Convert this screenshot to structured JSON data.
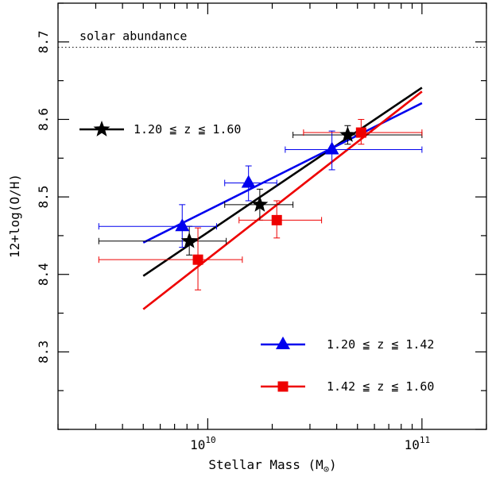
{
  "chart_data": {
    "type": "scatter",
    "xlabel": "Stellar Mass (M",
    "xlabel_symbol": "⊙",
    "xlabel_close": ")",
    "ylabel": "12+log(O/H)",
    "xscale": "log",
    "xlim": [
      2000000000.0,
      200000000000.0
    ],
    "ylim": [
      8.2,
      8.75
    ],
    "x_ticks": [
      {
        "value": 10000000000.0,
        "base": "10",
        "exp": "10"
      },
      {
        "value": 100000000000.0,
        "base": "10",
        "exp": "11"
      }
    ],
    "y_ticks": [
      "8.3",
      "8.4",
      "8.5",
      "8.6",
      "8.7"
    ],
    "reference_line": {
      "y": 8.693,
      "label": "solar abundance",
      "style": "dotted"
    },
    "series": [
      {
        "name": "1.20 ≦ z ≦ 1.60",
        "color": "#000000",
        "marker": "star",
        "legend_position": "upper-left",
        "points": [
          {
            "x": 8200000000.0,
            "y": 8.443,
            "xerr": [
              3100000000.0,
              12200000000.0
            ],
            "yerr": [
              8.425,
              8.462
            ]
          },
          {
            "x": 17500000000.0,
            "y": 8.49,
            "xerr": [
              12000000000.0,
              25000000000.0
            ],
            "yerr": [
              8.47,
              8.51
            ]
          },
          {
            "x": 45000000000.0,
            "y": 8.58,
            "xerr": [
              25000000000.0,
              100000000000.0
            ],
            "yerr": [
              8.568,
              8.592
            ]
          }
        ],
        "fit": {
          "x": [
            5000000000.0,
            100000000000.0
          ],
          "y": [
            8.398,
            8.641
          ]
        }
      },
      {
        "name": "1.20 ≦ z ≦ 1.42",
        "color": "#0000ee",
        "marker": "triangle",
        "legend_position": "lower-right",
        "points": [
          {
            "x": 7600000000.0,
            "y": 8.462,
            "xerr": [
              3100000000.0,
              11000000000.0
            ],
            "yerr": [
              8.435,
              8.49
            ]
          },
          {
            "x": 15500000000.0,
            "y": 8.518,
            "xerr": [
              12000000000.0,
              21000000000.0
            ],
            "yerr": [
              8.495,
              8.54
            ]
          },
          {
            "x": 38000000000.0,
            "y": 8.561,
            "xerr": [
              23000000000.0,
              100000000000.0
            ],
            "yerr": [
              8.535,
              8.585
            ]
          }
        ],
        "fit": {
          "x": [
            5000000000.0,
            100000000000.0
          ],
          "y": [
            8.441,
            8.621
          ]
        }
      },
      {
        "name": "1.42 ≦ z ≦ 1.60",
        "color": "#ee0000",
        "marker": "square",
        "legend_position": "lower-right",
        "points": [
          {
            "x": 9000000000.0,
            "y": 8.419,
            "xerr": [
              3100000000.0,
              14500000000.0
            ],
            "yerr": [
              8.38,
              8.46
            ]
          },
          {
            "x": 21000000000.0,
            "y": 8.47,
            "xerr": [
              14000000000.0,
              34000000000.0
            ],
            "yerr": [
              8.447,
              8.495
            ]
          },
          {
            "x": 52000000000.0,
            "y": 8.583,
            "xerr": [
              28000000000.0,
              100000000000.0
            ],
            "yerr": [
              8.568,
              8.6
            ]
          }
        ],
        "fit": {
          "x": [
            5000000000.0,
            100000000000.0
          ],
          "y": [
            8.355,
            8.636
          ]
        }
      }
    ]
  }
}
